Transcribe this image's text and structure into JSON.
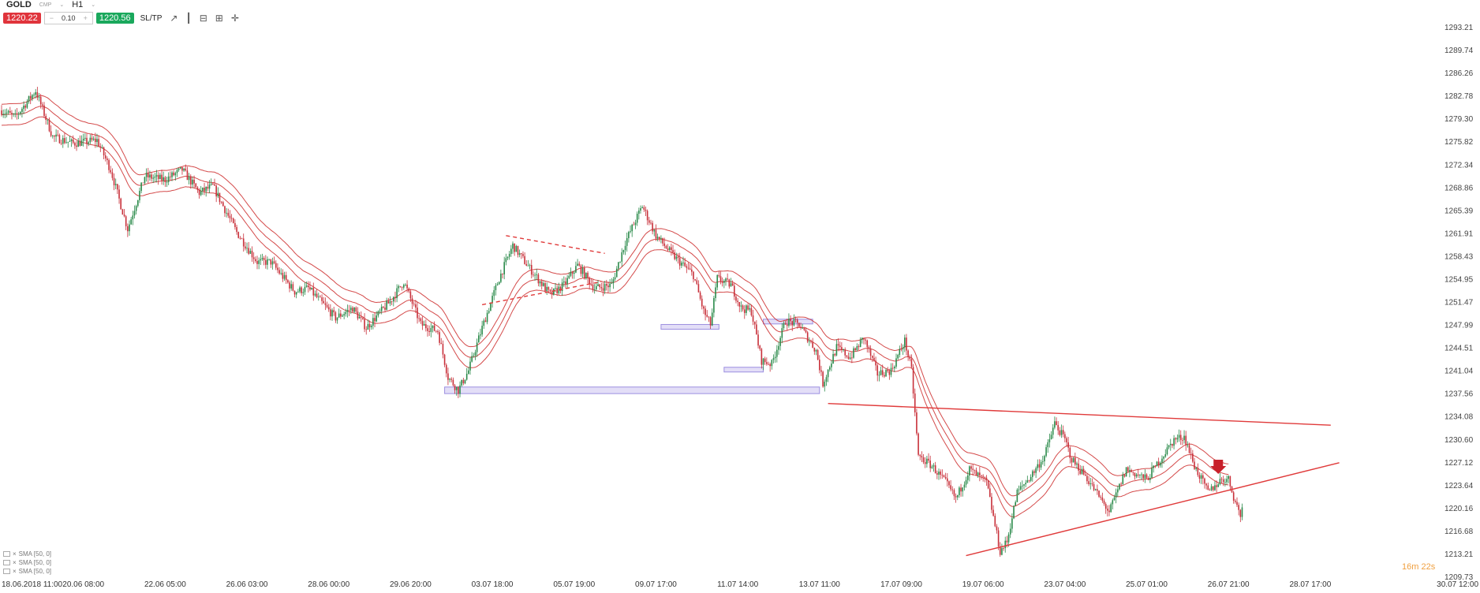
{
  "header": {
    "symbol": "GOLD",
    "market_tag": "CMP",
    "timeframe": "H1"
  },
  "trade_bar": {
    "sell_price": "1220.22",
    "volume": "0.10",
    "buy_price": "1220.56",
    "sltp_label": "SL/TP"
  },
  "tools": {
    "line_icon": "↗",
    "bars_icon": "┃",
    "zoom_out_icon": "⊟",
    "zoom_in_icon": "⊞",
    "crosshair_icon": "✛"
  },
  "indicators": [
    {
      "label": "SMA [50, 0]"
    },
    {
      "label": "SMA [50, 0]"
    },
    {
      "label": "SMA [50, 0]"
    }
  ],
  "timer": "16m 22s",
  "colors": {
    "up": "#2a8a4a",
    "down": "#c8303a",
    "band": "#cc2a2a",
    "trend": "#e03a3a",
    "zone_fill": "#dcd6f5",
    "zone_stroke": "#9c8fe0",
    "price_axis_text": "#444",
    "time_axis_text": "#333",
    "timer": "#f0a040"
  },
  "chart_data": {
    "type": "candlestick",
    "instrument": "GOLD",
    "timeframe": "H1",
    "ylim": [
      1209.73,
      1293.21
    ],
    "y_ticks": [
      "1293.21",
      "1289.74",
      "1286.26",
      "1282.78",
      "1279.30",
      "1275.82",
      "1272.34",
      "1268.86",
      "1265.39",
      "1261.91",
      "1258.43",
      "1254.95",
      "1251.47",
      "1247.99",
      "1244.51",
      "1241.04",
      "1237.56",
      "1234.08",
      "1230.60",
      "1227.12",
      "1223.64",
      "1220.16",
      "1216.68",
      "1213.21",
      "1209.73"
    ],
    "x_ticks": [
      "18.06.2018 11:00",
      "20.06 08:00",
      "22.06 05:00",
      "26.06 03:00",
      "28.06 00:00",
      "29.06 20:00",
      "03.07 18:00",
      "05.07 19:00",
      "09.07 17:00",
      "11.07 14:00",
      "13.07 11:00",
      "17.07 09:00",
      "19.07 06:00",
      "23.07 04:00",
      "25.07 01:00",
      "26.07 21:00",
      "28.07 17:00",
      "30.07 12:00"
    ],
    "x_tick_index": [
      0,
      48,
      96,
      144,
      192,
      240,
      288,
      336,
      384,
      432,
      480,
      528,
      576,
      624,
      672,
      720,
      768,
      816
    ],
    "price_path": [
      [
        0,
        1280.5
      ],
      [
        8,
        1279.5
      ],
      [
        20,
        1283.5
      ],
      [
        30,
        1276.5
      ],
      [
        42,
        1275.5
      ],
      [
        56,
        1276.0
      ],
      [
        64,
        1271.5
      ],
      [
        74,
        1262.5
      ],
      [
        84,
        1270.5
      ],
      [
        96,
        1270.0
      ],
      [
        106,
        1271.5
      ],
      [
        116,
        1268.0
      ],
      [
        124,
        1269.0
      ],
      [
        138,
        1262.0
      ],
      [
        150,
        1257.5
      ],
      [
        158,
        1257.5
      ],
      [
        172,
        1253.0
      ],
      [
        180,
        1253.5
      ],
      [
        196,
        1249.0
      ],
      [
        206,
        1250.5
      ],
      [
        214,
        1247.5
      ],
      [
        228,
        1251.5
      ],
      [
        236,
        1254.5
      ],
      [
        246,
        1248.0
      ],
      [
        256,
        1247.0
      ],
      [
        262,
        1240.0
      ],
      [
        268,
        1238.0
      ],
      [
        274,
        1241.0
      ],
      [
        282,
        1247.5
      ],
      [
        292,
        1255.0
      ],
      [
        300,
        1260.0
      ],
      [
        310,
        1256.5
      ],
      [
        322,
        1252.5
      ],
      [
        330,
        1254.0
      ],
      [
        338,
        1257.0
      ],
      [
        348,
        1253.5
      ],
      [
        358,
        1254.0
      ],
      [
        366,
        1260.5
      ],
      [
        376,
        1266.0
      ],
      [
        384,
        1261.5
      ],
      [
        394,
        1258.5
      ],
      [
        406,
        1255.5
      ],
      [
        412,
        1250.0
      ],
      [
        416,
        1248.0
      ],
      [
        420,
        1255.0
      ],
      [
        428,
        1254.0
      ],
      [
        434,
        1250.5
      ],
      [
        440,
        1250.0
      ],
      [
        446,
        1242.5
      ],
      [
        452,
        1242.0
      ],
      [
        460,
        1248.5
      ],
      [
        468,
        1248.0
      ],
      [
        478,
        1244.0
      ],
      [
        482,
        1239.0
      ],
      [
        490,
        1244.5
      ],
      [
        498,
        1243.0
      ],
      [
        506,
        1246.0
      ],
      [
        514,
        1240.5
      ],
      [
        522,
        1241.0
      ],
      [
        530,
        1245.5
      ],
      [
        534,
        1241.0
      ],
      [
        538,
        1228.0
      ],
      [
        546,
        1226.5
      ],
      [
        554,
        1224.0
      ],
      [
        560,
        1221.5
      ],
      [
        568,
        1226.0
      ],
      [
        578,
        1224.0
      ],
      [
        586,
        1213.5
      ],
      [
        590,
        1215.0
      ],
      [
        596,
        1222.5
      ],
      [
        604,
        1225.0
      ],
      [
        612,
        1228.0
      ],
      [
        618,
        1233.0
      ],
      [
        624,
        1230.5
      ],
      [
        628,
        1227.5
      ],
      [
        636,
        1225.0
      ],
      [
        650,
        1219.5
      ],
      [
        660,
        1226.0
      ],
      [
        672,
        1224.5
      ],
      [
        680,
        1227.5
      ],
      [
        688,
        1230.5
      ],
      [
        694,
        1231.0
      ],
      [
        700,
        1226.5
      ],
      [
        708,
        1222.5
      ],
      [
        716,
        1224.5
      ],
      [
        720,
        1224.5
      ],
      [
        724,
        1221.0
      ],
      [
        728,
        1218.5
      ]
    ],
    "last_price": 1220.22,
    "ema_bands": {
      "count": 3,
      "offsets": [
        -1.6,
        0,
        1.6
      ],
      "smoothing_alpha": 0.06,
      "end_index": 720
    },
    "trendlines": [
      {
        "name": "resistance",
        "from": [
          485,
          1236.0
        ],
        "to": [
          780,
          1232.7
        ],
        "style": "solid"
      },
      {
        "name": "support",
        "from": [
          566,
          1212.9
        ],
        "to": [
          785,
          1227.0
        ],
        "style": "solid"
      },
      {
        "name": "wedge-top",
        "from": [
          296,
          1261.5
        ],
        "to": [
          354,
          1258.8
        ],
        "style": "dashed"
      },
      {
        "name": "wedge-bottom",
        "from": [
          282,
          1251.0
        ],
        "to": [
          352,
          1254.5
        ],
        "style": "dashed"
      }
    ],
    "zones": [
      {
        "from": [
          260,
          1238.5
        ],
        "to": [
          480,
          1237.5
        ]
      },
      {
        "from": [
          387,
          1248.0
        ],
        "to": [
          421,
          1247.5
        ]
      },
      {
        "from": [
          424,
          1241.5
        ],
        "to": [
          447,
          1241.0
        ]
      },
      {
        "from": [
          447,
          1248.8
        ],
        "to": [
          476,
          1248.3
        ]
      }
    ],
    "sell_signal": {
      "index": 714,
      "price": 1226.5
    }
  }
}
